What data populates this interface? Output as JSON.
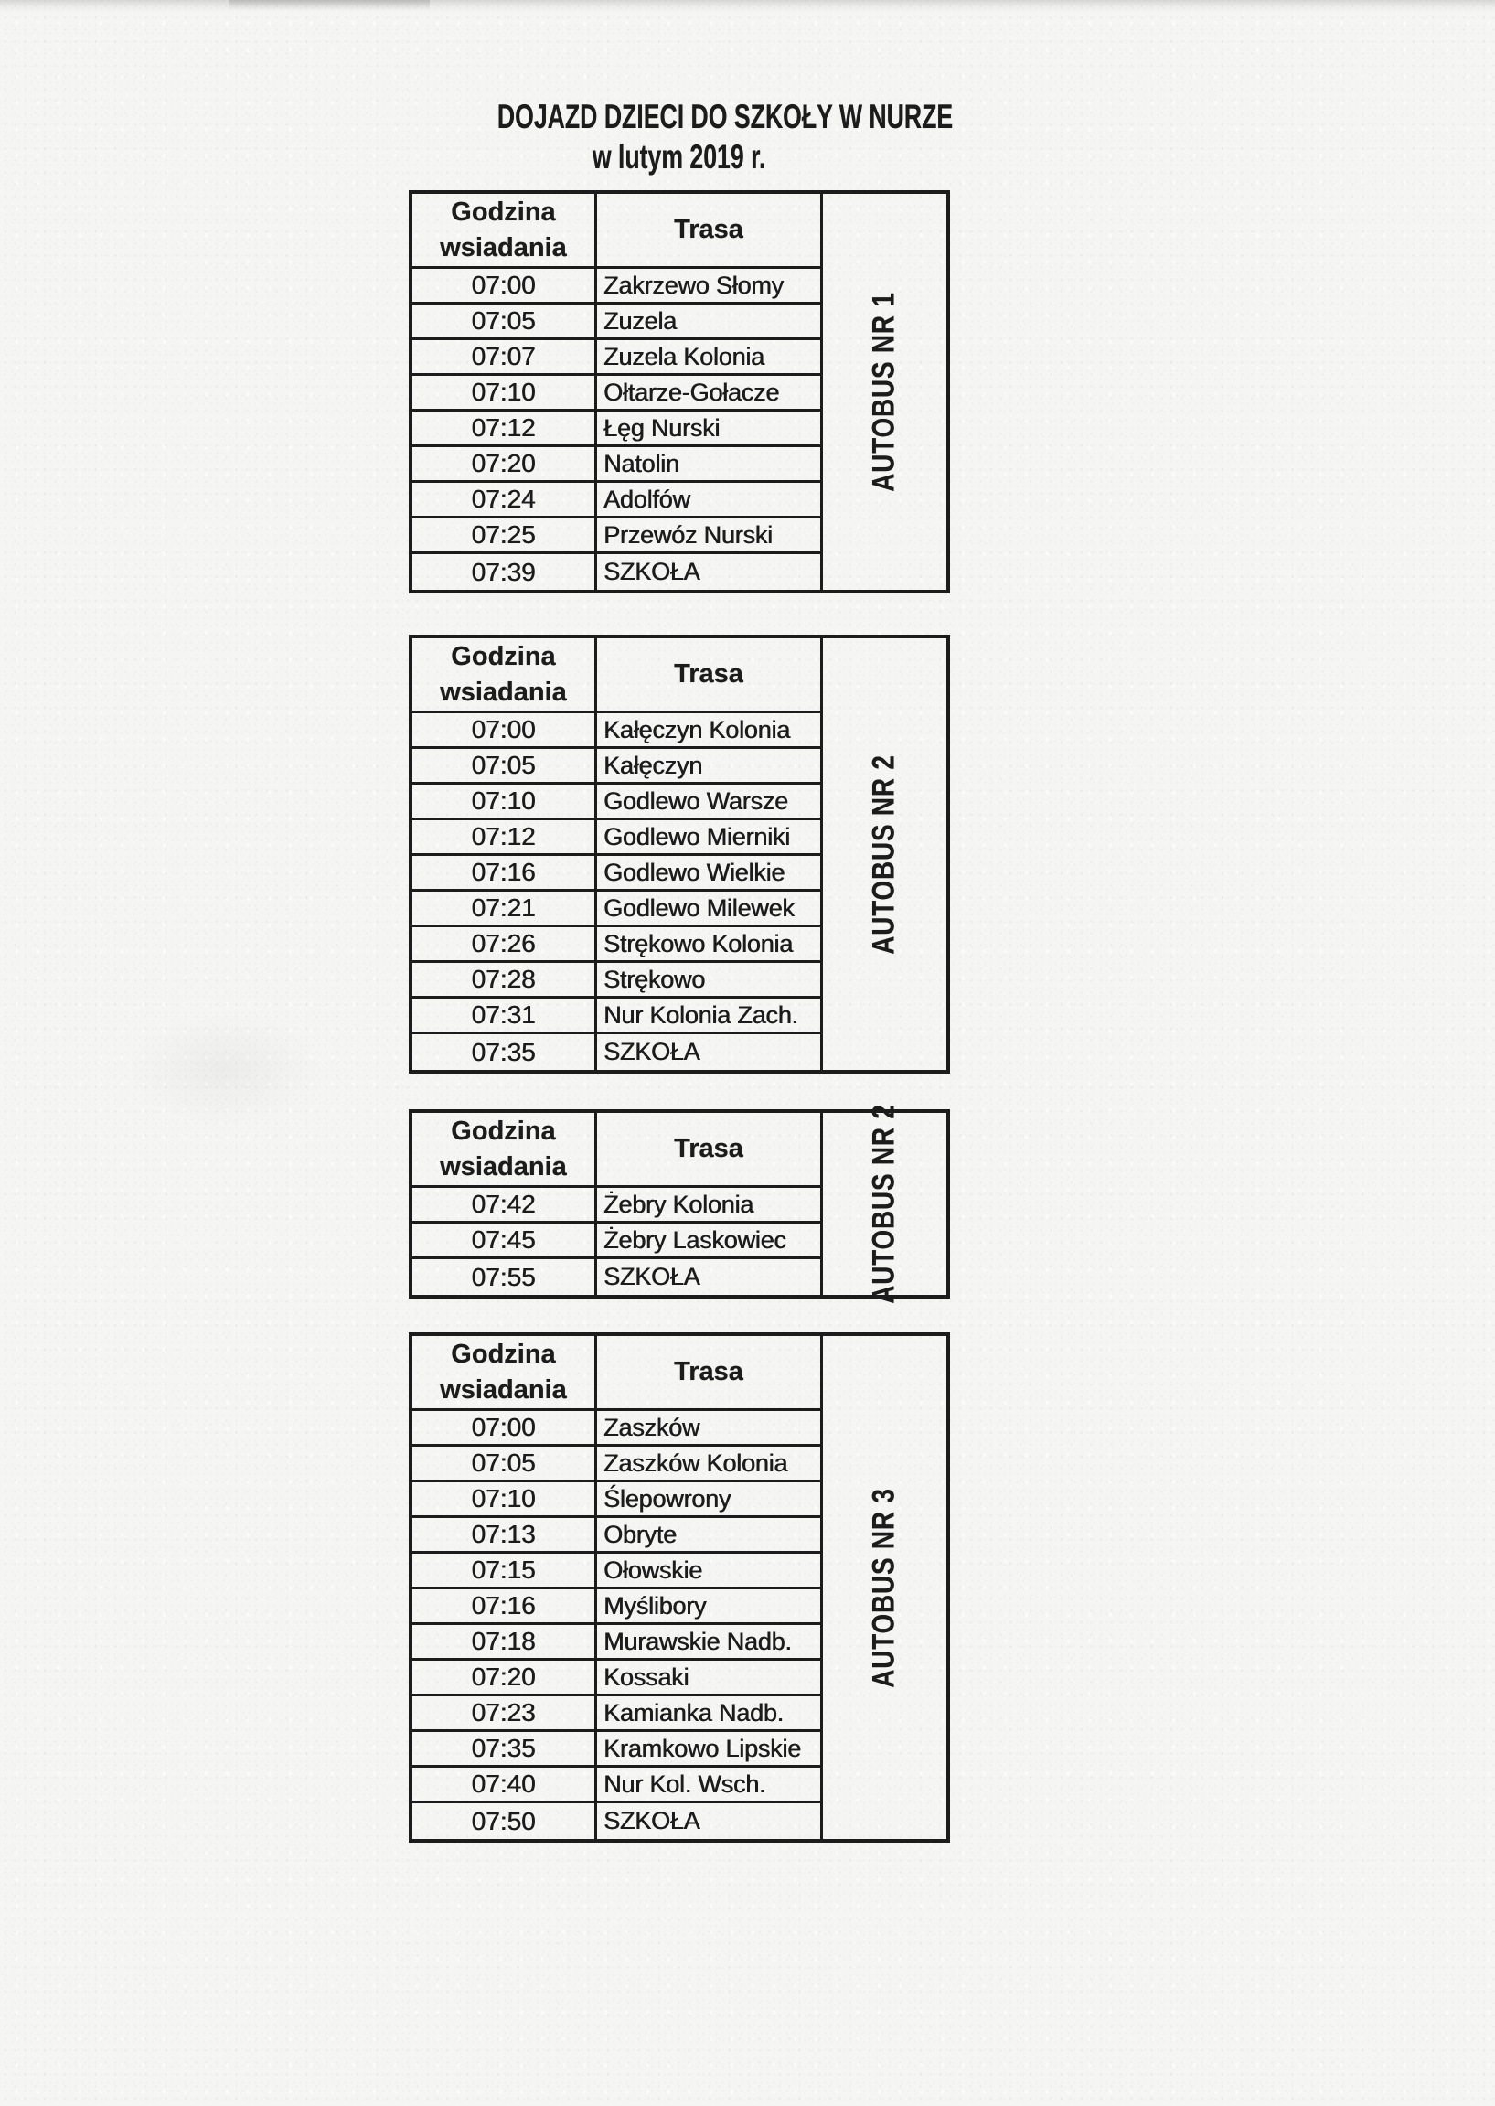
{
  "document": {
    "title_line1": "DOJAZD DZIECI DO SZKOŁY W NURZE",
    "title_line2": "w lutym 2019 r."
  },
  "column_headers": {
    "time_line1": "Godzina",
    "time_line2": "wsiadania",
    "route": "Trasa"
  },
  "colors": {
    "paper": "#f5f5f3",
    "ink": "#1c1c1c"
  },
  "tables": [
    {
      "bus_label": "AUTOBUS NR 1",
      "rows": [
        {
          "time": "07:00",
          "route": "Zakrzewo Słomy"
        },
        {
          "time": "07:05",
          "route": "Zuzela"
        },
        {
          "time": "07:07",
          "route": "Zuzela Kolonia"
        },
        {
          "time": "07:10",
          "route": "Ołtarze-Gołacze"
        },
        {
          "time": "07:12",
          "route": "Łęg Nurski"
        },
        {
          "time": "07:20",
          "route": "Natolin"
        },
        {
          "time": "07:24",
          "route": "Adolfów"
        },
        {
          "time": "07:25",
          "route": "Przewóz Nurski"
        },
        {
          "time": "07:39",
          "route": "SZKOŁA"
        }
      ]
    },
    {
      "bus_label": "AUTOBUS NR 2",
      "rows": [
        {
          "time": "07:00",
          "route": "Kałęczyn Kolonia"
        },
        {
          "time": "07:05",
          "route": "Kałęczyn"
        },
        {
          "time": "07:10",
          "route": "Godlewo Warsze"
        },
        {
          "time": "07:12",
          "route": "Godlewo Mierniki"
        },
        {
          "time": "07:16",
          "route": "Godlewo Wielkie"
        },
        {
          "time": "07:21",
          "route": "Godlewo Milewek"
        },
        {
          "time": "07:26",
          "route": "Strękowo Kolonia"
        },
        {
          "time": "07:28",
          "route": "Strękowo"
        },
        {
          "time": "07:31",
          "route": "Nur Kolonia Zach."
        },
        {
          "time": "07:35",
          "route": "SZKOŁA"
        }
      ]
    },
    {
      "bus_label": "AUTOBUS NR 2",
      "rows": [
        {
          "time": "07:42",
          "route": "Żebry Kolonia"
        },
        {
          "time": "07:45",
          "route": "Żebry Laskowiec"
        },
        {
          "time": "07:55",
          "route": "SZKOŁA"
        }
      ]
    },
    {
      "bus_label": "AUTOBUS NR 3",
      "rows": [
        {
          "time": "07:00",
          "route": "Zaszków"
        },
        {
          "time": "07:05",
          "route": "Zaszków Kolonia"
        },
        {
          "time": "07:10",
          "route": "Ślepowrony"
        },
        {
          "time": "07:13",
          "route": "Obryte"
        },
        {
          "time": "07:15",
          "route": "Ołowskie"
        },
        {
          "time": "07:16",
          "route": "Myślibory"
        },
        {
          "time": "07:18",
          "route": "Murawskie Nadb."
        },
        {
          "time": "07:20",
          "route": "Kossaki"
        },
        {
          "time": "07:23",
          "route": "Kamianka Nadb."
        },
        {
          "time": "07:35",
          "route": "Kramkowo Lipskie"
        },
        {
          "time": "07:40",
          "route": "Nur Kol. Wsch."
        },
        {
          "time": "07:50",
          "route": "SZKOŁA"
        }
      ]
    }
  ]
}
